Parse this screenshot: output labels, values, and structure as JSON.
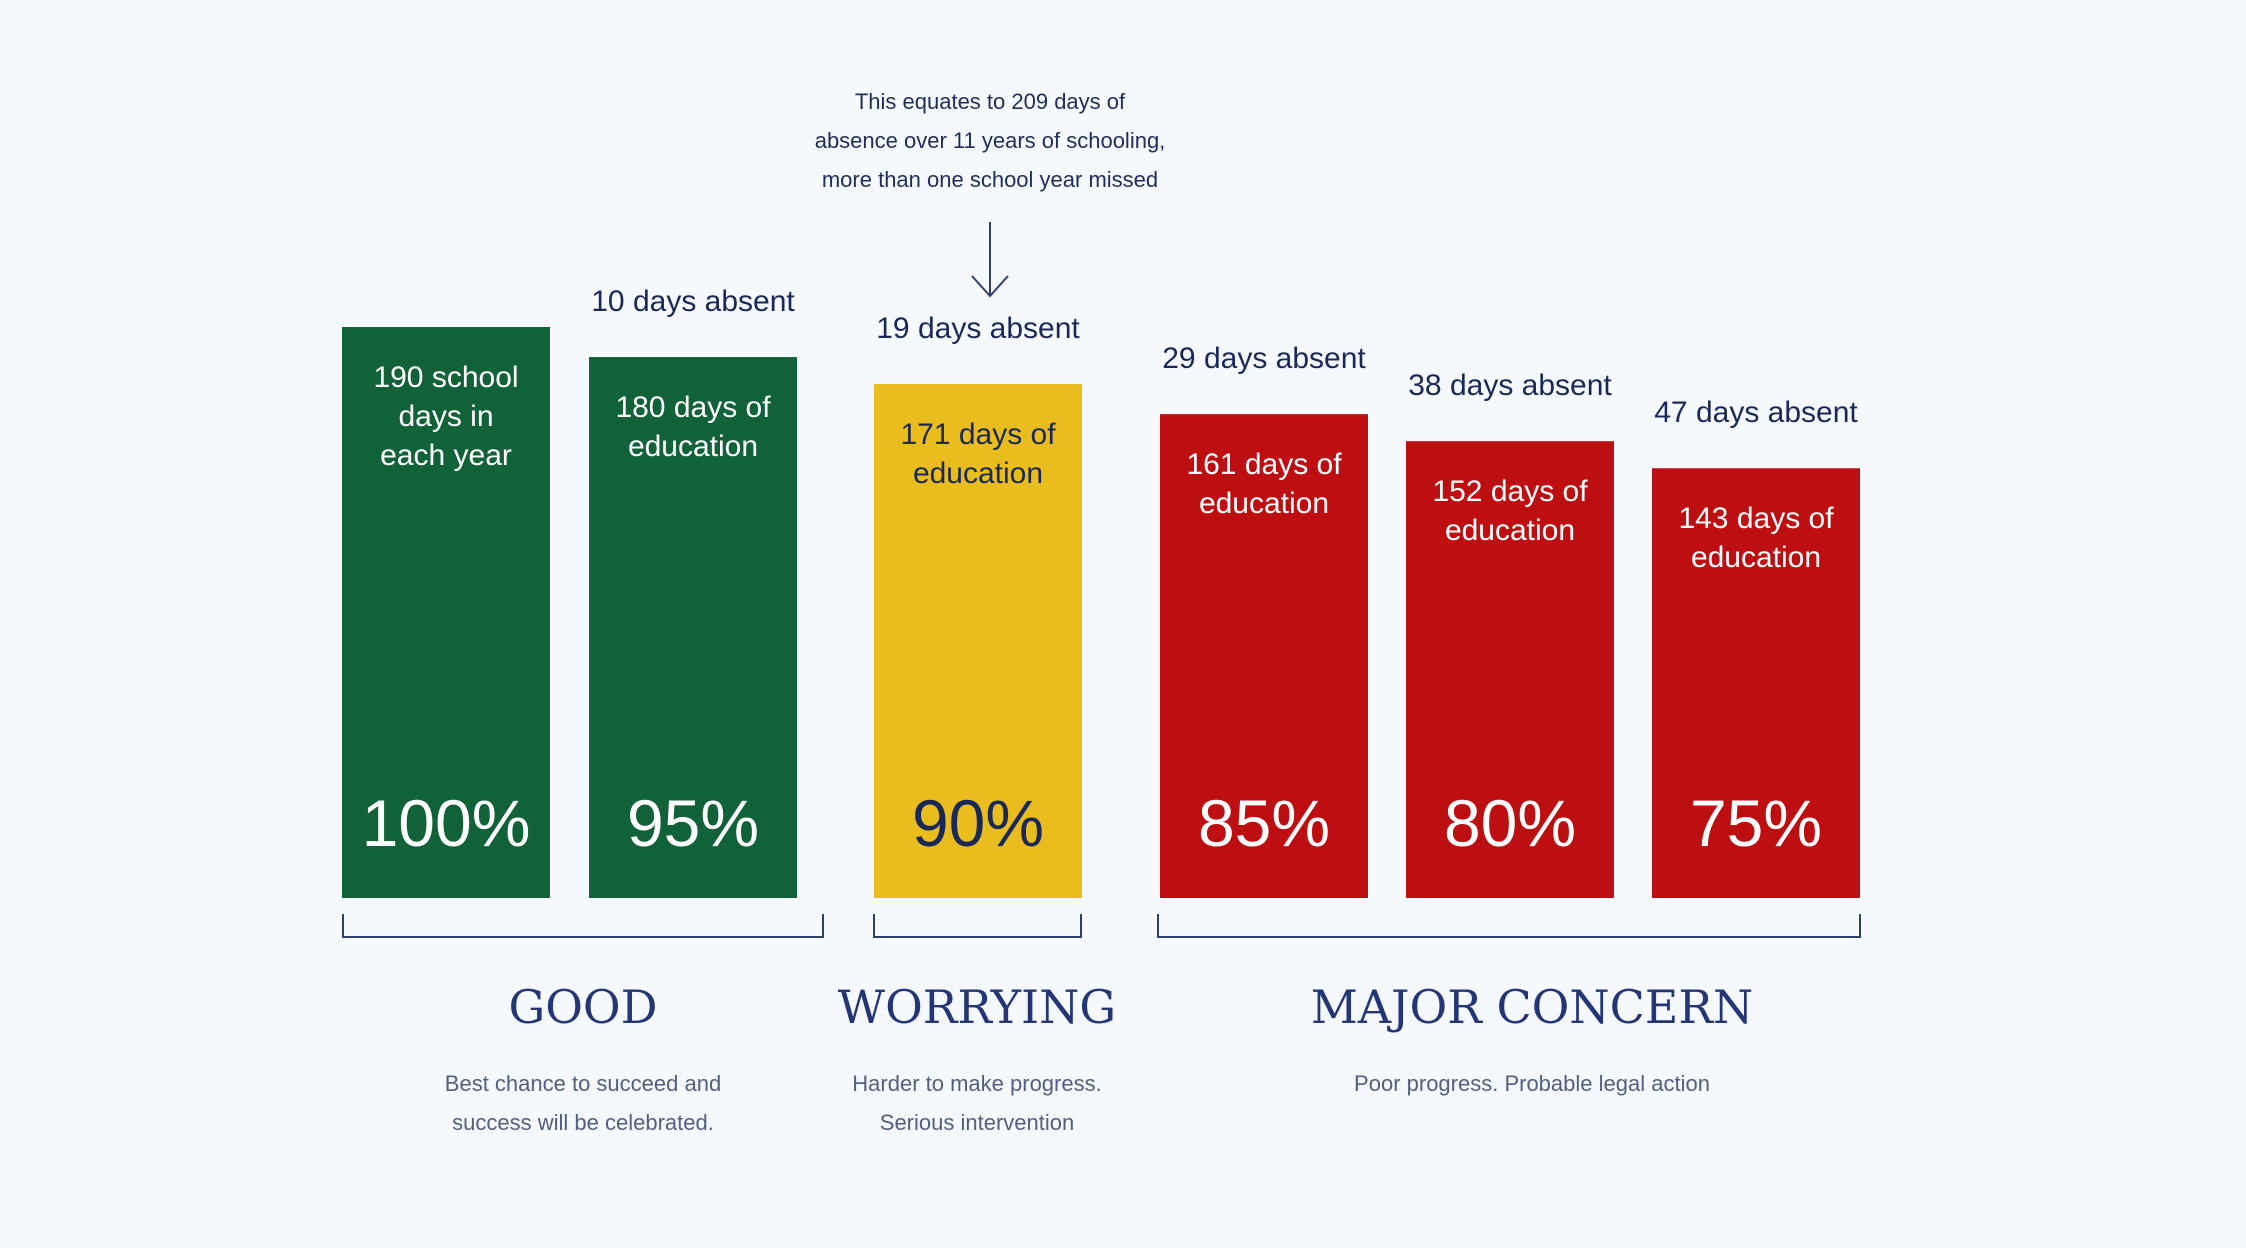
{
  "note": {
    "lines": [
      "This equates to 209 days of",
      "absence over 11 years of schooling,",
      "more than one school year missed"
    ]
  },
  "colors": {
    "good": "#126239",
    "worrying": "#e9bd1e",
    "concern": "#bd0f11",
    "text_dark": "#1a2857",
    "bracket": "#2f3f6e",
    "background": "#f5f8fd"
  },
  "chart_data": {
    "type": "bar",
    "categories": [
      "100%",
      "95%",
      "90%",
      "85%",
      "80%",
      "75%"
    ],
    "values": [
      190,
      180,
      171,
      161,
      152,
      143
    ],
    "ylim": [
      0,
      190
    ],
    "bars": [
      {
        "percent": "100%",
        "days": 190,
        "absent_label": "",
        "inner_lines": [
          "190 school",
          "days in",
          "each year"
        ],
        "group": "good"
      },
      {
        "percent": "95%",
        "days": 180,
        "absent_label": "10 days absent",
        "inner_lines": [
          "180 days of",
          "education"
        ],
        "group": "good"
      },
      {
        "percent": "90%",
        "days": 171,
        "absent_label": "19 days absent",
        "inner_lines": [
          "171 days of",
          "education"
        ],
        "group": "worrying"
      },
      {
        "percent": "85%",
        "days": 161,
        "absent_label": "29 days absent",
        "inner_lines": [
          "161 days of",
          "education"
        ],
        "group": "concern"
      },
      {
        "percent": "80%",
        "days": 152,
        "absent_label": "38 days absent",
        "inner_lines": [
          "152 days of",
          "education"
        ],
        "group": "concern"
      },
      {
        "percent": "75%",
        "days": 143,
        "absent_label": "47 days absent",
        "inner_lines": [
          "143 days of",
          "education"
        ],
        "group": "concern"
      }
    ],
    "groups": [
      {
        "key": "good",
        "title": "GOOD",
        "desc": [
          "Best chance to succeed and",
          "success will be celebrated."
        ]
      },
      {
        "key": "worrying",
        "title": "WORRYING",
        "desc": [
          "Harder to make progress.",
          "Serious intervention"
        ]
      },
      {
        "key": "concern",
        "title": "MAJOR CONCERN",
        "desc": [
          "Poor progress. Probable legal action"
        ]
      }
    ]
  }
}
